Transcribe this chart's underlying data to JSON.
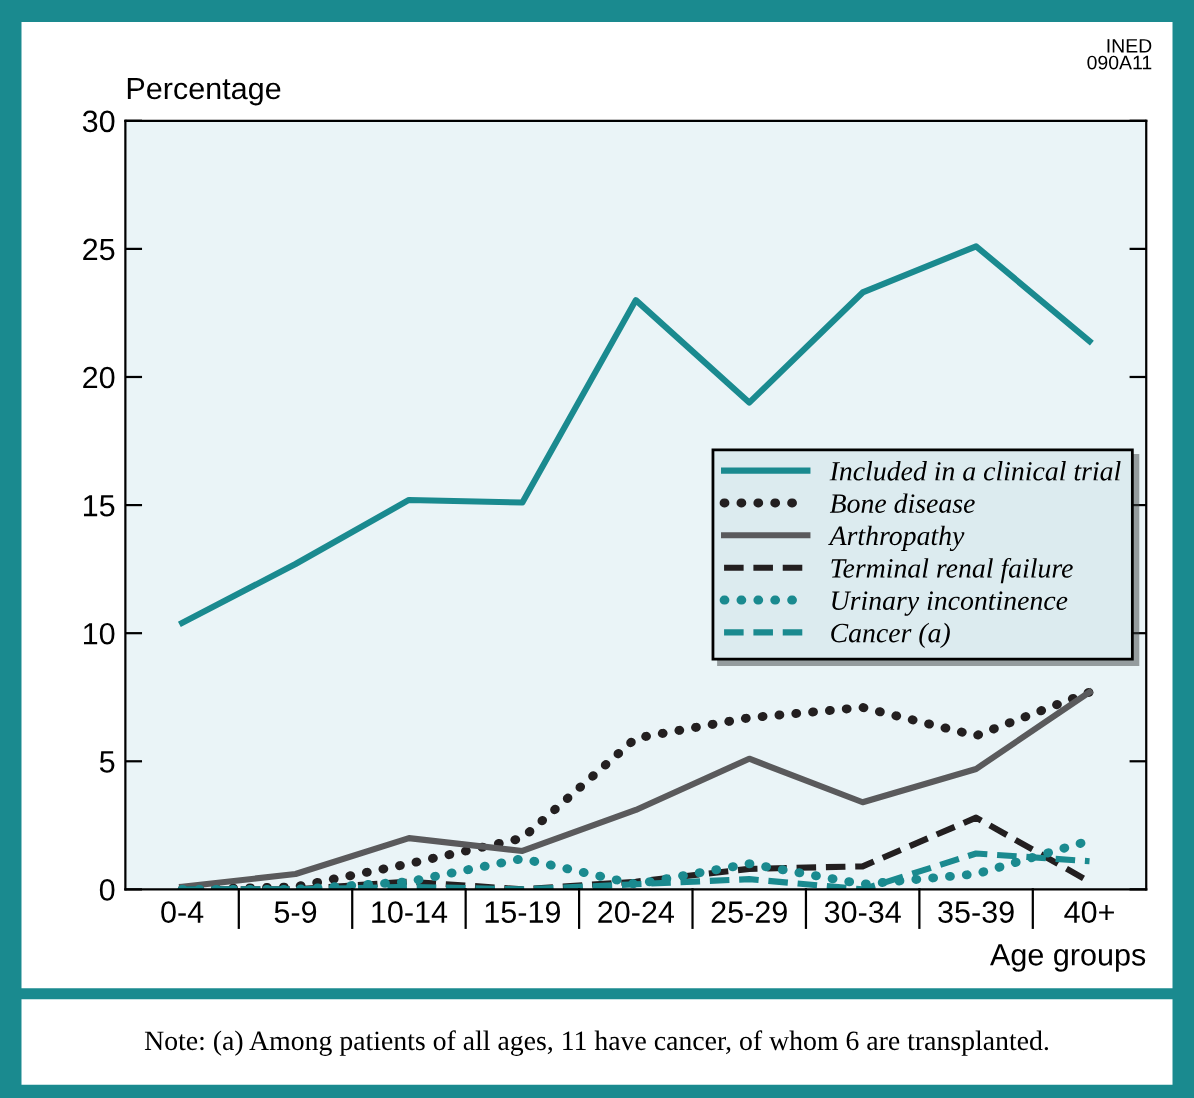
{
  "chart_data": {
    "type": "line",
    "ylabel": "Percentage",
    "xlabel": "Age groups",
    "categories": [
      "0-4",
      "5-9",
      "10-14",
      "15-19",
      "20-24",
      "25-29",
      "30-34",
      "35-39",
      "40+"
    ],
    "series": [
      {
        "name": "Included in a clinical trial",
        "color": "#1a8a8f",
        "line_style": "solid",
        "values": [
          10.4,
          12.7,
          15.2,
          15.1,
          23.0,
          19.0,
          23.3,
          25.1,
          21.4
        ]
      },
      {
        "name": "Bone disease",
        "color": "#231f20",
        "line_style": "dotted",
        "values": [
          0,
          0.1,
          1.0,
          2.0,
          5.9,
          6.7,
          7.1,
          6.0,
          7.7
        ]
      },
      {
        "name": "Arthropathy",
        "color": "#5a5a5c",
        "line_style": "solid",
        "values": [
          0.1,
          0.6,
          2.0,
          1.5,
          3.1,
          5.1,
          3.4,
          4.7,
          7.7
        ]
      },
      {
        "name": "Terminal renal failure",
        "color": "#231f20",
        "line_style": "dashed",
        "values": [
          0,
          0,
          0.3,
          0,
          0.3,
          0.8,
          0.9,
          2.8,
          0.3
        ]
      },
      {
        "name": "Urinary incontinence",
        "color": "#1a8a8f",
        "line_style": "dotted",
        "values": [
          0,
          0,
          0.3,
          1.2,
          0.2,
          1.0,
          0.2,
          0.6,
          1.9
        ]
      },
      {
        "name": "Cancer (a)",
        "color": "#1a8a8f",
        "line_style": "dashed",
        "values": [
          0,
          0,
          0.1,
          0,
          0.2,
          0.4,
          0,
          1.4,
          1.1
        ]
      }
    ],
    "ylim": [
      0,
      30
    ],
    "yticks": [
      0,
      5,
      10,
      15,
      20,
      25,
      30
    ],
    "grid": false,
    "legend": "right",
    "marker": "none",
    "annotations": [
      "INED\n090A11",
      "Note: (a) Among patients of all ages, 11 have cancer, of whom 6 are transplanted."
    ]
  }
}
